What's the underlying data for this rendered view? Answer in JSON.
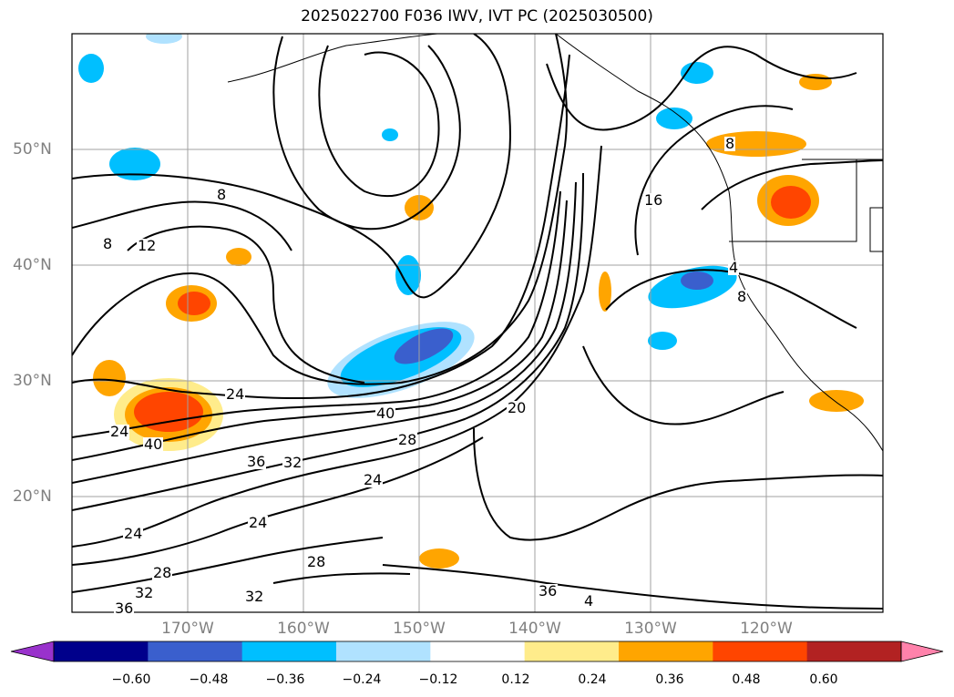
{
  "title": "2025022700 F036 IWV, IVT PC (2025030500)",
  "lat_labels": [
    "50°N",
    "40°N",
    "30°N",
    "20°N"
  ],
  "lon_labels": [
    "170°W",
    "160°W",
    "150°W",
    "140°W",
    "130°W",
    "120°W"
  ],
  "contour_labels": [
    "8",
    "12",
    "8",
    "16",
    "24",
    "24",
    "40",
    "40",
    "28",
    "20",
    "36",
    "32",
    "24",
    "24",
    "24",
    "28",
    "28",
    "32",
    "32",
    "36",
    "36",
    "4",
    "4",
    "8",
    "8"
  ],
  "colorbar": {
    "ticks": [
      "−0.60",
      "−0.48",
      "−0.36",
      "−0.24",
      "−0.12",
      "0.12",
      "0.24",
      "0.36",
      "0.48",
      "0.60"
    ],
    "colors": [
      "#9932cc",
      "#00008b",
      "#3a5fcd",
      "#00bfff",
      "#b0e2ff",
      "#ffffff",
      "#ffec8b",
      "#ffa500",
      "#ff4500",
      "#b22222",
      "#ff82ab"
    ]
  },
  "colors": {
    "contour": "#000000",
    "grid": "#a0a0a0",
    "axis_label": "#808080"
  }
}
